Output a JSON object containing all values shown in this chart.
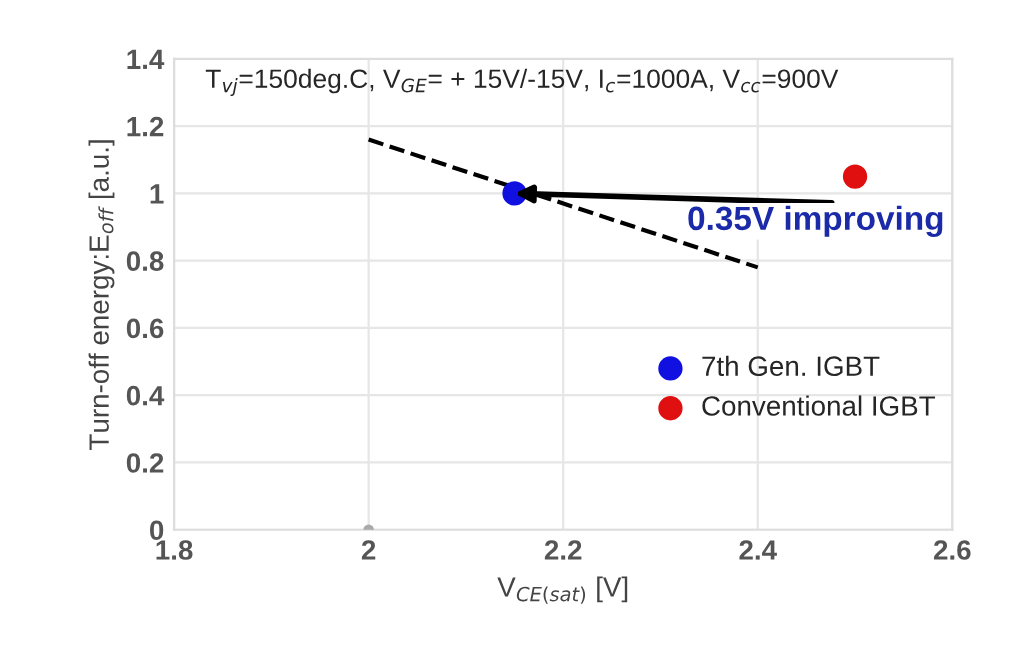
{
  "chart_data": {
    "type": "scatter",
    "xlabel": "V$_{CE(sat)}$ [V]",
    "ylabel": "Turn-off energy:E$_{off}$ [a.u.]",
    "xlim": [
      1.8,
      2.6
    ],
    "xticks": [
      1.8,
      2,
      2.2,
      2.4,
      2.6
    ],
    "ylim": [
      0,
      1.4
    ],
    "yticks": [
      0,
      0.2,
      0.4,
      0.6,
      0.8,
      1,
      1.2,
      1.4
    ],
    "grid": true,
    "legend": "right",
    "marker": "circle",
    "series": [
      {
        "name": "7th Gen. IGBT",
        "color": "#1010e0",
        "x": [
          2.15
        ],
        "values": [
          1.0
        ]
      },
      {
        "name": "Conventional IGBT",
        "color": "#e01010",
        "x": [
          2.5
        ],
        "values": [
          1.05
        ]
      },
      {
        "type": "line",
        "color": "#000000",
        "line_style": "dashed",
        "marker": "none",
        "x": [
          2.0,
          2.4
        ],
        "values": [
          1.16,
          0.78
        ]
      },
      {
        "color": "#aaaaaa",
        "x": [
          2.0
        ],
        "values": [
          0
        ]
      }
    ],
    "annotations": [
      "T$_{vj}$=150deg.C, V$_{GE}$= + 15V/-15V, I$_{c}$=1000A, V$_{cc}$=900V",
      {
        "text": "0.35V improving",
        "x": 2.15,
        "y": 1.0
      }
    ]
  }
}
